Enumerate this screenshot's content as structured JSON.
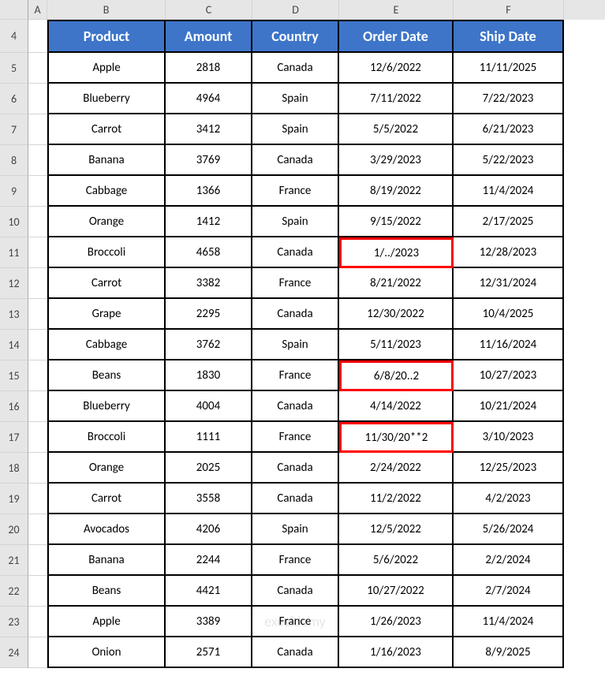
{
  "colLetters": [
    "A",
    "B",
    "C",
    "D",
    "E",
    "F"
  ],
  "headers": {
    "B": "Product",
    "C": "Amount",
    "D": "Country",
    "E": "Order Date",
    "F": "Ship Date"
  },
  "highlightCells": [
    "E11",
    "E15",
    "E17"
  ],
  "watermark": "exceldemy",
  "rows": [
    {
      "n": 5,
      "B": "Apple",
      "C": "2818",
      "D": "Canada",
      "E": "12/6/2022",
      "F": "11/11/2025"
    },
    {
      "n": 6,
      "B": "Blueberry",
      "C": "4964",
      "D": "Spain",
      "E": "7/11/2022",
      "F": "7/22/2023"
    },
    {
      "n": 7,
      "B": "Carrot",
      "C": "3412",
      "D": "Spain",
      "E": "5/5/2022",
      "F": "6/21/2023"
    },
    {
      "n": 8,
      "B": "Banana",
      "C": "3769",
      "D": "Canada",
      "E": "3/29/2023",
      "F": "5/22/2023"
    },
    {
      "n": 9,
      "B": "Cabbage",
      "C": "1366",
      "D": "France",
      "E": "8/19/2022",
      "F": "11/4/2024"
    },
    {
      "n": 10,
      "B": "Orange",
      "C": "1412",
      "D": "Spain",
      "E": "9/15/2022",
      "F": "2/17/2025"
    },
    {
      "n": 11,
      "B": "Broccoli",
      "C": "4658",
      "D": "Canada",
      "E": "1/../2023",
      "F": "12/28/2023"
    },
    {
      "n": 12,
      "B": "Carrot",
      "C": "3382",
      "D": "France",
      "E": "8/21/2022",
      "F": "12/31/2024"
    },
    {
      "n": 13,
      "B": "Grape",
      "C": "2295",
      "D": "Canada",
      "E": "12/30/2022",
      "F": "10/4/2025"
    },
    {
      "n": 14,
      "B": "Cabbage",
      "C": "3762",
      "D": "Spain",
      "E": "5/11/2023",
      "F": "11/16/2024"
    },
    {
      "n": 15,
      "B": "Beans",
      "C": "1830",
      "D": "France",
      "E": "6/8/20..2",
      "F": "10/27/2023"
    },
    {
      "n": 16,
      "B": "Blueberry",
      "C": "4004",
      "D": "Canada",
      "E": "4/14/2022",
      "F": "10/21/2024"
    },
    {
      "n": 17,
      "B": "Broccoli",
      "C": "1111",
      "D": "France",
      "E": "11/30/20**2",
      "F": "3/10/2023"
    },
    {
      "n": 18,
      "B": "Orange",
      "C": "2025",
      "D": "Canada",
      "E": "2/24/2022",
      "F": "12/25/2023"
    },
    {
      "n": 19,
      "B": "Carrot",
      "C": "3558",
      "D": "Canada",
      "E": "11/2/2022",
      "F": "4/2/2023"
    },
    {
      "n": 20,
      "B": "Avocados",
      "C": "4206",
      "D": "Spain",
      "E": "12/5/2022",
      "F": "5/26/2024"
    },
    {
      "n": 21,
      "B": "Banana",
      "C": "2244",
      "D": "France",
      "E": "5/6/2022",
      "F": "2/2/2024"
    },
    {
      "n": 22,
      "B": "Beans",
      "C": "4421",
      "D": "Canada",
      "E": "10/27/2022",
      "F": "2/7/2024"
    },
    {
      "n": 23,
      "B": "Apple",
      "C": "3389",
      "D": "France",
      "E": "1/26/2023",
      "F": "11/4/2024"
    },
    {
      "n": 24,
      "B": "Onion",
      "C": "2571",
      "D": "Canada",
      "E": "1/16/2023",
      "F": "8/9/2025"
    }
  ]
}
